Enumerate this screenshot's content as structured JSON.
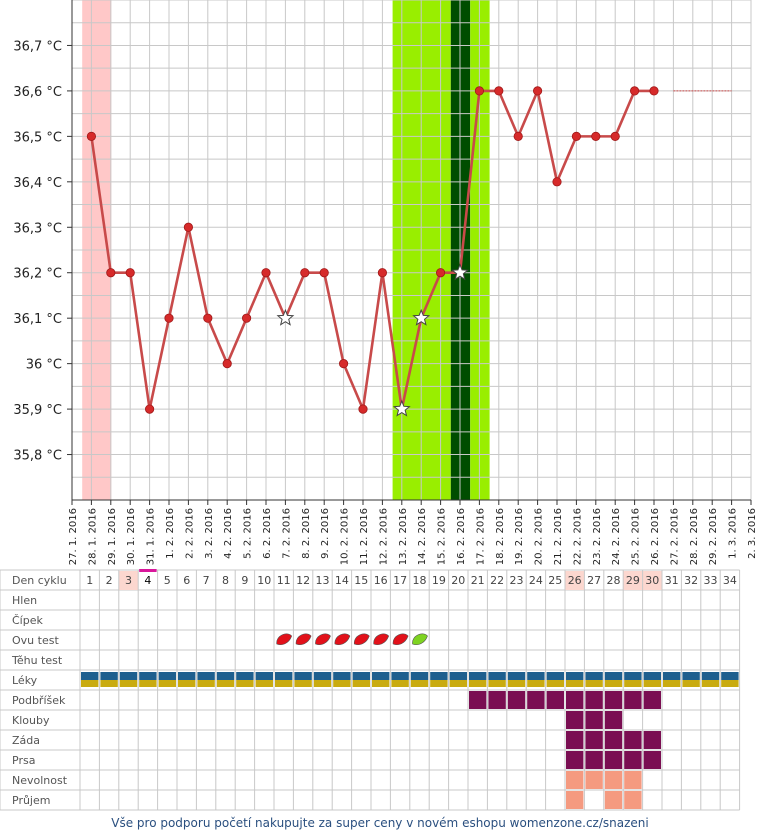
{
  "chart_data": {
    "type": "line",
    "ylim": [
      35.7,
      36.8
    ],
    "y_ticks": [
      "35,8 °C",
      "35,9 °C",
      "36 °C",
      "36,1 °C",
      "36,2 °C",
      "36,3 °C",
      "36,4 °C",
      "36,5 °C",
      "36,6 °C",
      "36,7 °C"
    ],
    "y_tick_values": [
      35.8,
      35.9,
      36.0,
      36.1,
      36.2,
      36.3,
      36.4,
      36.5,
      36.6,
      36.7
    ],
    "dates": [
      "27. 1. 2016",
      "28. 1. 2016",
      "29. 1. 2016",
      "30. 1. 2016",
      "31. 1. 2016",
      "1. 2. 2016",
      "2. 2. 2016",
      "3. 2. 2016",
      "4. 2. 2016",
      "5. 2. 2016",
      "6. 2. 2016",
      "7. 2. 2016",
      "8. 2. 2016",
      "9. 2. 2016",
      "10. 2. 2016",
      "11. 2. 2016",
      "12. 2. 2016",
      "13. 2. 2016",
      "14. 2. 2016",
      "15. 2. 2016",
      "16. 2. 2016",
      "17. 2. 2016",
      "18. 2. 2016",
      "19. 2. 2016",
      "20. 2. 2016",
      "21. 2. 2016",
      "22. 2. 2016",
      "23. 2. 2016",
      "24. 2. 2016",
      "25. 2. 2016",
      "26. 2. 2016",
      "27. 2. 2016",
      "28. 2. 2016",
      "29. 2. 2016",
      "1. 3. 2016",
      "2. 3. 2016"
    ],
    "series": [
      {
        "values": [
          null,
          36.5,
          36.2,
          36.2,
          35.9,
          36.1,
          36.3,
          36.1,
          36.0,
          36.1,
          36.2,
          36.1,
          36.2,
          36.2,
          36.0,
          35.9,
          36.2,
          35.9,
          36.1,
          36.2,
          36.2,
          36.6,
          36.6,
          36.5,
          36.6,
          36.4,
          36.5,
          36.5,
          36.5,
          36.6,
          36.6,
          null,
          null,
          null,
          null,
          null
        ],
        "color": "#c84a4a",
        "star_days": [
          11,
          17,
          18,
          20
        ]
      }
    ],
    "bands": [
      {
        "from": 1,
        "to": 2.5,
        "color": "#ffc8c8"
      },
      {
        "from": 17,
        "to": 20,
        "color": "#99ee00"
      },
      {
        "from": 20,
        "to": 21,
        "color": "#004d00"
      },
      {
        "from": 21,
        "to": 22,
        "color": "#99ee00"
      }
    ],
    "extension": {
      "from_day": 31,
      "to_day": 34,
      "value": 36.6
    }
  },
  "table": {
    "rows": [
      "Den cyklu",
      "Hlen",
      "Čípek",
      "Ovu test",
      "Těhu test",
      "Léky",
      "Podbříšek",
      "Klouby",
      "Záda",
      "Prsa",
      "Nevolnost",
      "Průjem"
    ],
    "days": [
      "1",
      "2",
      "3",
      "4",
      "5",
      "6",
      "7",
      "8",
      "9",
      "10",
      "11",
      "12",
      "13",
      "14",
      "15",
      "16",
      "17",
      "18",
      "19",
      "20",
      "21",
      "22",
      "23",
      "24",
      "25",
      "26",
      "27",
      "28",
      "29",
      "30",
      "31",
      "32",
      "33",
      "34"
    ],
    "highlight_days": [
      3,
      26,
      29,
      30
    ],
    "current_day": 4,
    "ovu_test": {
      "red": [
        11,
        12,
        13,
        14,
        15,
        16,
        17
      ],
      "green": [
        18
      ]
    },
    "leky": {
      "from": 1,
      "to": 34
    },
    "symptoms": {
      "Podbříšek": {
        "days": [
          21,
          22,
          23,
          24,
          25,
          26,
          27,
          28,
          29,
          30
        ],
        "color": "#7a0e52"
      },
      "Klouby": {
        "days": [
          26,
          27,
          28
        ],
        "color": "#7a0e52"
      },
      "Záda": {
        "days": [
          26,
          27,
          28,
          29,
          30
        ],
        "color": "#7a0e52"
      },
      "Prsa": {
        "days": [
          26,
          27,
          28,
          29,
          30
        ],
        "color": "#7a0e52"
      },
      "Nevolnost": {
        "days": [
          26,
          27,
          28,
          29
        ],
        "color": "#f59a80"
      },
      "Průjem": {
        "days": [
          26,
          28,
          29
        ],
        "color": "#f59a80"
      }
    }
  },
  "footer": "Vše pro podporu početí nakupujte za super ceny v novém eshopu womenzone.cz/snazeni"
}
